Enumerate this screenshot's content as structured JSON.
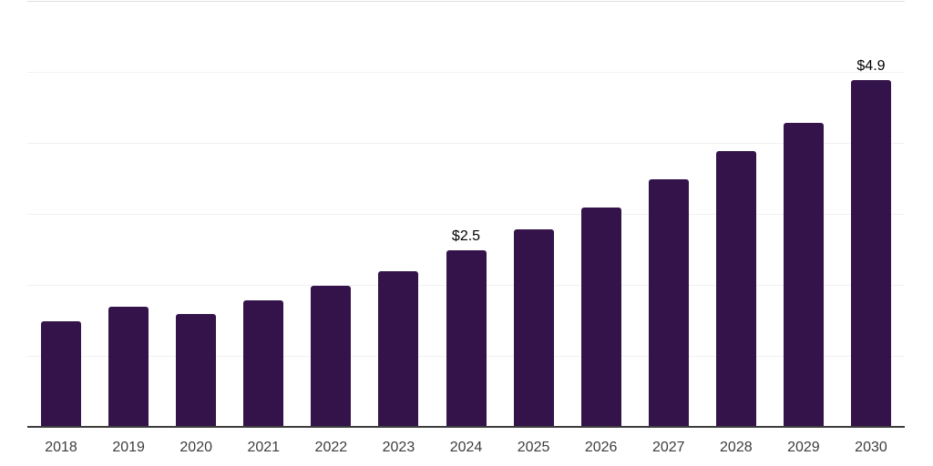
{
  "chart_data": {
    "type": "bar",
    "title": "",
    "xlabel": "",
    "ylabel": "",
    "categories": [
      "2018",
      "2019",
      "2020",
      "2021",
      "2022",
      "2023",
      "2024",
      "2025",
      "2026",
      "2027",
      "2028",
      "2029",
      "2030"
    ],
    "values": [
      1.5,
      1.7,
      1.6,
      1.8,
      2.0,
      2.2,
      2.5,
      2.8,
      3.1,
      3.5,
      3.9,
      4.3,
      4.9
    ],
    "data_labels": {
      "2024": "$2.5",
      "2030": "$4.9"
    },
    "ylim": [
      0,
      6
    ],
    "gridline_values": [
      1,
      2,
      3,
      4,
      5,
      6
    ],
    "grid": "horizontal",
    "legend": "none",
    "colors": {
      "bar": "#331349",
      "axis_line": "#3c3c3c",
      "gridline": "#f1f1f1",
      "top_gridline": "#e0e0e0",
      "data_label": "#000000",
      "tick_label": "#3d3d3d",
      "background": "#ffffff"
    }
  }
}
